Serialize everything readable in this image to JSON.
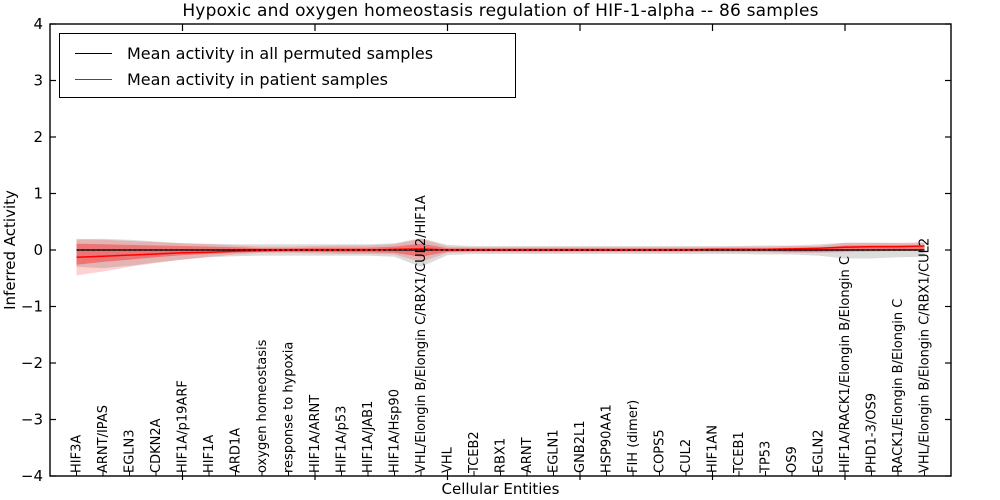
{
  "title": "Hypoxic and oxygen homeostasis regulation of HIF-1-alpha -- 86 samples",
  "legend": {
    "items": [
      {
        "label": "Mean activity in all permuted samples",
        "color": "#000000"
      },
      {
        "label": "Mean activity in patient samples",
        "color": "#ff0000"
      }
    ]
  },
  "axes": {
    "ylabel": "Inferred Activity",
    "xlabel": "Cellular Entities",
    "yticks": [
      "4",
      "3",
      "2",
      "1",
      "0",
      "−1",
      "−2",
      "−3",
      "−4"
    ],
    "ylim": [
      -4,
      4
    ]
  },
  "chart_data": {
    "type": "line",
    "title": "Hypoxic and oxygen homeostasis regulation of HIF-1-alpha -- 86 samples",
    "xlabel": "Cellular Entities",
    "ylabel": "Inferred Activity",
    "ylim": [
      -4,
      4
    ],
    "grid": false,
    "legend_position": "upper left",
    "categories": [
      "HIF3A",
      "ARNT/IPAS",
      "EGLN3",
      "CDKN2A",
      "HIF1A/p19ARF",
      "HIF1A",
      "ARD1A",
      "oxygen homeostasis",
      "response to hypoxia",
      "HIF1A/ARNT",
      "HIF1A/p53",
      "HIF1A/JAB1",
      "HIF1A/Hsp90",
      "VHL/Elongin B/Elongin C/RBX1/CUL2/HIF1A",
      "VHL",
      "TCEB2",
      "RBX1",
      "ARNT",
      "EGLN1",
      "GNB2L1",
      "HSP90AA1",
      "FIH (dimer)",
      "COPS5",
      "CUL2",
      "HIF1AN",
      "TCEB1",
      "TP53",
      "OS9",
      "EGLN2",
      "HIF1A/RACK1/Elongin B/Elongin C",
      "PHD1-3/OS9",
      "RACK1/Elongin B/Elongin C",
      "VHL/Elongin B/Elongin C/RBX1/CUL2"
    ],
    "series": [
      {
        "name": "Mean activity in all permuted samples",
        "color": "#000000",
        "values": [
          0,
          0,
          0,
          0,
          0,
          0,
          0,
          0,
          0,
          0,
          0,
          0,
          0,
          0,
          0,
          0,
          0,
          0,
          0,
          0,
          0,
          0,
          0,
          0,
          0,
          0,
          0,
          0,
          0,
          0,
          0,
          0,
          0
        ]
      },
      {
        "name": "Mean activity in patient samples",
        "color": "#ff0000",
        "values": [
          -0.13,
          -0.11,
          -0.09,
          -0.07,
          -0.05,
          -0.04,
          -0.02,
          -0.01,
          0,
          0,
          0,
          0,
          0.01,
          0.02,
          0,
          0,
          0,
          0,
          0,
          0,
          0,
          0,
          0,
          0,
          0.01,
          0.01,
          0.01,
          0.02,
          0.03,
          0.05,
          0.06,
          0.06,
          0.07
        ]
      }
    ],
    "bands": [
      {
        "name": "permuted-range",
        "color": "#808080",
        "opacity": 0.28,
        "lo": [
          -0.3,
          -0.32,
          -0.28,
          -0.22,
          -0.17,
          -0.13,
          -0.11,
          -0.1,
          -0.1,
          -0.1,
          -0.1,
          -0.1,
          -0.12,
          -0.3,
          -0.09,
          -0.07,
          -0.07,
          -0.07,
          -0.07,
          -0.07,
          -0.07,
          -0.07,
          -0.07,
          -0.07,
          -0.07,
          -0.07,
          -0.08,
          -0.08,
          -0.1,
          -0.15,
          -0.15,
          -0.13,
          -0.12
        ],
        "hi": [
          0.18,
          0.2,
          0.18,
          0.15,
          0.12,
          0.11,
          0.1,
          0.1,
          0.1,
          0.1,
          0.1,
          0.1,
          0.12,
          0.21,
          0.09,
          0.07,
          0.07,
          0.07,
          0.07,
          0.07,
          0.07,
          0.07,
          0.07,
          0.07,
          0.07,
          0.07,
          0.08,
          0.08,
          0.1,
          0.13,
          0.13,
          0.12,
          0.12
        ]
      },
      {
        "name": "patient-range",
        "color": "#ff0000",
        "opacity": 0.18,
        "lo": [
          -0.45,
          -0.38,
          -0.3,
          -0.23,
          -0.17,
          -0.12,
          -0.08,
          -0.05,
          -0.05,
          -0.06,
          -0.07,
          -0.07,
          -0.08,
          -0.21,
          -0.05,
          -0.04,
          -0.04,
          -0.04,
          -0.04,
          -0.04,
          -0.04,
          -0.04,
          -0.04,
          -0.04,
          -0.04,
          -0.04,
          -0.04,
          -0.05,
          -0.05,
          -0.04,
          -0.03,
          -0.02,
          -0.02
        ],
        "hi": [
          0.2,
          0.18,
          0.16,
          0.14,
          0.12,
          0.1,
          0.08,
          0.06,
          0.06,
          0.07,
          0.08,
          0.08,
          0.1,
          0.2,
          0.06,
          0.05,
          0.05,
          0.05,
          0.05,
          0.05,
          0.05,
          0.05,
          0.05,
          0.05,
          0.05,
          0.06,
          0.06,
          0.07,
          0.07,
          0.13,
          0.13,
          0.13,
          0.14
        ]
      },
      {
        "name": "patient-iqr",
        "color": "#ff0000",
        "opacity": 0.35,
        "lo": [
          -0.26,
          -0.21,
          -0.17,
          -0.13,
          -0.09,
          -0.07,
          -0.05,
          -0.03,
          -0.03,
          -0.03,
          -0.04,
          -0.04,
          -0.05,
          -0.12,
          -0.03,
          -0.02,
          -0.02,
          -0.02,
          -0.02,
          -0.02,
          -0.02,
          -0.02,
          -0.02,
          -0.02,
          -0.02,
          -0.02,
          -0.02,
          -0.03,
          -0.03,
          -0.02,
          -0.01,
          -0.01,
          -0.01
        ],
        "hi": [
          0.11,
          0.1,
          0.09,
          0.08,
          0.07,
          0.06,
          0.05,
          0.03,
          0.03,
          0.04,
          0.04,
          0.04,
          0.06,
          0.11,
          0.03,
          0.03,
          0.03,
          0.03,
          0.03,
          0.03,
          0.03,
          0.03,
          0.03,
          0.03,
          0.03,
          0.03,
          0.03,
          0.04,
          0.04,
          0.08,
          0.08,
          0.08,
          0.08
        ]
      }
    ],
    "xticks_major": [
      5,
      10,
      15,
      20,
      25,
      30
    ],
    "xlim": [
      0,
      34
    ]
  }
}
